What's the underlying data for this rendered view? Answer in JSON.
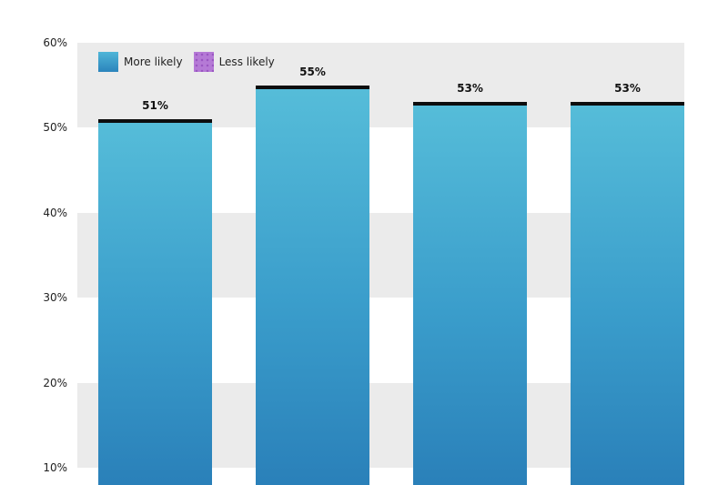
{
  "chart_data": {
    "type": "bar",
    "title": "",
    "xlabel": "",
    "ylabel": "",
    "categories": [
      "",
      "",
      "",
      ""
    ],
    "series": [
      {
        "name": "More likely",
        "color": "#3a9dcb",
        "values": [
          51,
          55,
          53,
          53
        ]
      },
      {
        "name": "Less likely",
        "color": "#b57ad6",
        "values": []
      }
    ],
    "data_labels": [
      "51%",
      "55%",
      "53%",
      "53%"
    ],
    "y_ticks": [
      "60%",
      "50%",
      "40%",
      "30%",
      "20%",
      "10%"
    ],
    "ylim": [
      10,
      60
    ],
    "grid": "alternating bands",
    "legend_position": "top-left inside plot"
  },
  "legend": {
    "items": [
      {
        "label": "More likely",
        "swatch": "blue-gradient"
      },
      {
        "label": "Less likely",
        "swatch": "purple-dotted"
      }
    ]
  },
  "colors": {
    "bar_top": "#56bdd9",
    "bar_bottom": "#2a80b9",
    "band": "#ebebeb",
    "cap": "#0d0d0d",
    "less_likely": "#b57ad6"
  }
}
